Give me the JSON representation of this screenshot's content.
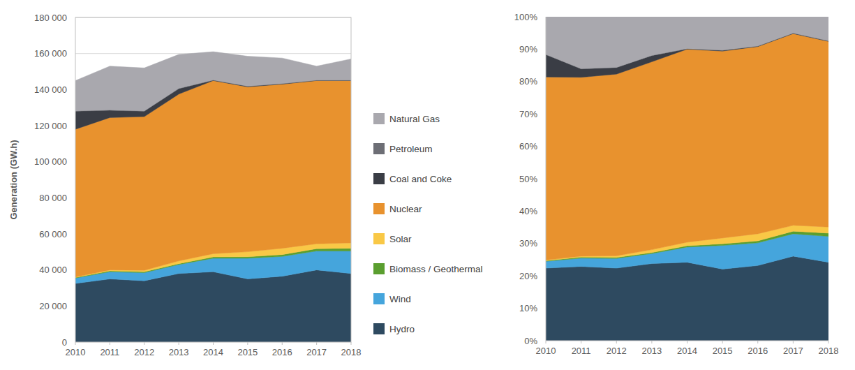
{
  "chart_data": [
    {
      "type": "area",
      "stacked": true,
      "grid": true,
      "legend": "right",
      "y_label": "Generation (GW.h)",
      "x": [
        2010,
        2011,
        2012,
        2013,
        2014,
        2015,
        2016,
        2017,
        2018
      ],
      "xlim": [
        2010,
        2018
      ],
      "xticks": [
        2010,
        2011,
        2012,
        2013,
        2014,
        2015,
        2016,
        2017,
        2018
      ],
      "ylim": [
        0,
        180000
      ],
      "yticks": [
        0,
        {
          "value": 20000,
          "label": "20 000"
        },
        {
          "value": 40000,
          "label": "40 000"
        },
        {
          "value": 60000,
          "label": "60 000"
        },
        {
          "value": 80000,
          "label": "80 000"
        },
        {
          "value": 100000,
          "label": "100 000"
        },
        {
          "value": 120000,
          "label": "120 000"
        },
        {
          "value": 140000,
          "label": "140 000"
        },
        {
          "value": 160000,
          "label": "160 000"
        },
        {
          "value": 180000,
          "label": "180 000"
        }
      ],
      "series": [
        {
          "name": "Hydro",
          "color": "#2e4a60",
          "values": [
            32500,
            35000,
            34000,
            38000,
            39000,
            35000,
            36500,
            40000,
            38000
          ]
        },
        {
          "name": "Wind",
          "color": "#45a5dc",
          "values": [
            3000,
            4000,
            4500,
            5000,
            7500,
            11500,
            11000,
            10500,
            12500
          ]
        },
        {
          "name": "Biomass / Geothermal",
          "color": "#5a9e2f",
          "values": [
            300,
            500,
            500,
            500,
            700,
            800,
            1000,
            1300,
            1500
          ]
        },
        {
          "name": "Solar",
          "color": "#f9c846",
          "values": [
            300,
            500,
            800,
            1500,
            1800,
            2800,
            3500,
            2700,
            3000
          ]
        },
        {
          "name": "Nuclear",
          "color": "#e8922e",
          "values": [
            81900,
            84500,
            85200,
            92500,
            96000,
            91400,
            91000,
            90500,
            90000
          ]
        },
        {
          "name": "Coal and Coke",
          "color": "#3a3d45",
          "values": [
            10000,
            4000,
            3000,
            3000,
            200,
            300,
            200,
            100,
            100
          ]
        },
        {
          "name": "Petroleum",
          "color": "#6d6e75",
          "values": [
            200,
            200,
            200,
            200,
            200,
            200,
            200,
            200,
            200
          ]
        },
        {
          "name": "Natural Gas",
          "color": "#a9a8ae",
          "values": [
            16800,
            24300,
            23800,
            18800,
            15600,
            16500,
            14100,
            7700,
            11700
          ]
        }
      ]
    },
    {
      "type": "area",
      "stacked": true,
      "grid": false,
      "x": [
        2010,
        2011,
        2012,
        2013,
        2014,
        2015,
        2016,
        2017,
        2018
      ],
      "xlim": [
        2010,
        2018
      ],
      "xticks": [
        2010,
        2011,
        2012,
        2013,
        2014,
        2015,
        2016,
        2017,
        2018
      ],
      "ylim": [
        0,
        100
      ],
      "yticks": [
        {
          "value": 0,
          "label": "0%"
        },
        {
          "value": 10,
          "label": "10%"
        },
        {
          "value": 20,
          "label": "20%"
        },
        {
          "value": 30,
          "label": "30%"
        },
        {
          "value": 40,
          "label": "40%"
        },
        {
          "value": 50,
          "label": "50%"
        },
        {
          "value": 60,
          "label": "60%"
        },
        {
          "value": 70,
          "label": "70%"
        },
        {
          "value": 80,
          "label": "80%"
        },
        {
          "value": 90,
          "label": "90%"
        },
        {
          "value": 100,
          "label": "100%"
        }
      ],
      "series": [
        {
          "color": "#2e4a60",
          "values": [
            22.4,
            22.9,
            22.4,
            23.8,
            24.2,
            22.1,
            23.2,
            26.1,
            24.2
          ]
        },
        {
          "color": "#45a5dc",
          "values": [
            2.1,
            2.6,
            3.0,
            3.1,
            4.7,
            7.3,
            7.0,
            6.9,
            8.0
          ]
        },
        {
          "color": "#5a9e2f",
          "values": [
            0.2,
            0.3,
            0.3,
            0.3,
            0.4,
            0.5,
            0.6,
            0.8,
            1.0
          ]
        },
        {
          "color": "#f9c846",
          "values": [
            0.2,
            0.3,
            0.5,
            0.9,
            1.1,
            1.8,
            2.2,
            1.8,
            1.9
          ]
        },
        {
          "color": "#e8922e",
          "values": [
            56.5,
            55.2,
            56.1,
            58.0,
            59.6,
            57.7,
            57.8,
            59.2,
            57.3
          ]
        },
        {
          "color": "#3a3d45",
          "values": [
            6.9,
            2.6,
            2.0,
            1.9,
            0.1,
            0.2,
            0.1,
            0.1,
            0.1
          ]
        },
        {
          "color": "#6d6e75",
          "values": [
            0.1,
            0.1,
            0.1,
            0.1,
            0.1,
            0.1,
            0.1,
            0.1,
            0.1
          ]
        },
        {
          "color": "#a9a8ae",
          "values": [
            11.6,
            16.0,
            15.6,
            11.9,
            9.8,
            10.3,
            9.0,
            5.0,
            7.4
          ]
        }
      ]
    }
  ]
}
